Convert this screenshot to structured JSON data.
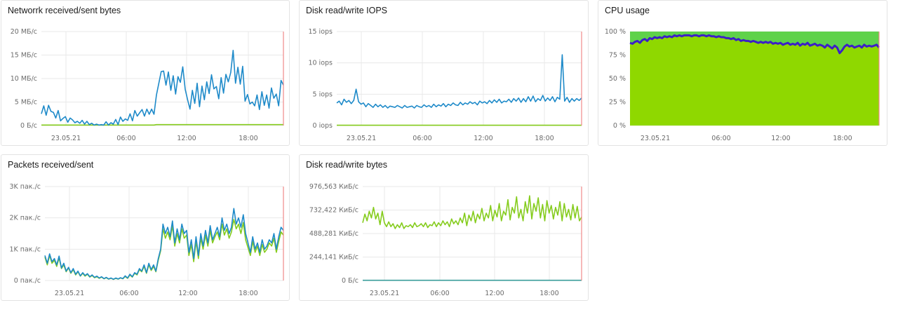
{
  "colors": {
    "blue": "#1e8ac9",
    "green": "#85cc1d",
    "teal": "#3a9c9b",
    "cpu_fill": "#8fd800",
    "cpu_line": "#3c1fc7",
    "grid": "#e8e8e8",
    "now_line": "#f08a8a"
  },
  "chart_data": [
    {
      "id": "network",
      "type": "line",
      "title": "Networrk received/sent bytes",
      "y_ticks": [
        "20 МБ/с",
        "15 МБ/с",
        "10 МБ/с",
        "5 МБ/с",
        "0 Б/с"
      ],
      "x_ticks": [
        "23.05.21",
        "06:00",
        "12:00",
        "18:00"
      ],
      "ylim": [
        0,
        20
      ],
      "y_unit": "МБ/с",
      "grid": true,
      "series": [
        {
          "color": "#1e8ac9",
          "values": [
            2.5,
            4.2,
            2.2,
            4.3,
            3.0,
            2.8,
            1.6,
            3.2,
            1.0,
            1.5,
            1.9,
            0.7,
            1.6,
            1.2,
            0.6,
            0.9,
            0.5,
            1.1,
            0.3,
            0.9,
            0.2,
            0.5,
            0.1,
            0.3,
            0.1,
            0.2,
            0.1,
            0.8,
            0.1,
            0.6,
            0.3,
            1.3,
            0.2,
            1.8,
            0.9,
            1.4,
            1.1,
            2.5,
            1.0,
            3.2,
            2.0,
            2.7,
            3.4,
            2.0,
            3.5,
            2.4,
            3.5,
            2.4,
            6.5,
            9.0,
            11.5,
            11.6,
            8.6,
            11.4,
            7.5,
            10.6,
            6.7,
            10.4,
            9.2,
            12.5,
            7.7,
            5.5,
            3.5,
            7.5,
            4.7,
            9.0,
            4.0,
            8.4,
            5.5,
            9.3,
            6.8,
            10.8,
            7.8,
            8.3,
            5.7,
            10.2,
            6.9,
            10.9,
            9.3,
            11.3,
            16.0,
            9.0,
            12.4,
            8.8,
            12.6,
            5.2,
            6.6,
            4.6,
            5.0,
            4.2,
            6.5,
            3.4,
            7.2,
            4.3,
            6.5,
            3.7,
            8.0,
            5.8,
            6.7,
            4.2,
            9.6,
            8.6
          ]
        },
        {
          "color": "#85cc1d",
          "values": [
            0.1,
            0.1,
            0.1,
            0.1,
            0.1,
            0.1,
            0.1,
            0.1,
            0.1,
            0.1,
            0.1,
            0.1,
            0.1,
            0.1,
            0.1,
            0.1,
            0.1,
            0.1,
            0.1,
            0.1,
            0.1,
            0.1,
            0.1,
            0.1,
            0.1,
            0.1,
            0.1,
            0.1,
            0.1,
            0.1,
            0.1,
            0.1,
            0.1,
            0.1,
            0.1,
            0.1,
            0.1,
            0.1,
            0.1,
            0.1,
            0.1,
            0.1,
            0.1,
            0.1,
            0.1,
            0.1,
            0.1,
            0.1,
            0.2,
            0.2,
            0.2,
            0.2,
            0.2,
            0.2,
            0.2,
            0.2,
            0.2,
            0.2,
            0.2,
            0.2,
            0.2,
            0.2,
            0.2,
            0.2,
            0.2,
            0.2,
            0.2,
            0.2,
            0.2,
            0.2,
            0.2,
            0.2,
            0.2,
            0.2,
            0.2,
            0.2,
            0.2,
            0.2,
            0.2,
            0.2,
            0.2,
            0.2,
            0.2,
            0.2,
            0.2,
            0.2,
            0.2,
            0.2,
            0.2,
            0.2,
            0.2,
            0.2,
            0.2,
            0.2,
            0.2,
            0.2,
            0.2,
            0.2,
            0.2,
            0.2,
            0.2,
            0.2
          ]
        }
      ]
    },
    {
      "id": "iops",
      "type": "line",
      "title": "Disk read/write IOPS",
      "y_ticks": [
        "15 iops",
        "10 iops",
        "5 iops",
        "0 iops"
      ],
      "x_ticks": [
        "23.05.21",
        "06:00",
        "12:00",
        "18:00"
      ],
      "ylim": [
        0,
        15
      ],
      "y_unit": "iops",
      "grid": true,
      "series": [
        {
          "color": "#1e8ac9",
          "values": [
            3.6,
            3.9,
            3.3,
            4.2,
            3.7,
            4.0,
            3.5,
            4.0,
            5.8,
            3.8,
            3.4,
            3.6,
            3.0,
            3.5,
            3.2,
            2.9,
            3.4,
            3.0,
            3.3,
            2.9,
            3.2,
            2.8,
            3.1,
            3.0,
            2.9,
            3.2,
            3.0,
            2.8,
            3.2,
            2.9,
            3.0,
            3.1,
            2.8,
            3.2,
            3.0,
            2.9,
            3.3,
            3.0,
            3.2,
            2.9,
            3.4,
            3.0,
            3.3,
            3.1,
            3.5,
            3.0,
            3.4,
            3.2,
            3.6,
            3.3,
            3.2,
            3.7,
            3.3,
            3.6,
            3.4,
            3.8,
            3.5,
            3.7,
            3.3,
            3.9,
            3.6,
            3.8,
            3.5,
            4.0,
            3.6,
            4.1,
            3.7,
            4.2,
            3.6,
            3.9,
            3.8,
            4.2,
            3.7,
            4.3,
            3.9,
            4.4,
            3.7,
            4.3,
            3.8,
            4.6,
            3.9,
            4.7,
            3.8,
            4.3,
            4.0,
            4.8,
            3.9,
            4.4,
            4.0,
            4.6,
            3.8,
            4.5,
            4.2,
            11.3,
            3.9,
            4.5,
            3.7,
            4.3,
            3.9,
            4.3,
            4.0,
            4.4
          ]
        },
        {
          "color": "#85cc1d",
          "values": [
            0.05,
            0.05,
            0.05,
            0.05,
            0.05,
            0.05,
            0.05,
            0.05,
            0.05,
            0.05,
            0.05,
            0.05,
            0.05,
            0.05,
            0.05,
            0.05,
            0.05,
            0.05,
            0.05,
            0.05,
            0.05,
            0.05,
            0.05,
            0.05,
            0.05,
            0.05,
            0.05,
            0.05,
            0.05,
            0.05,
            0.05,
            0.05,
            0.05,
            0.05,
            0.05,
            0.05,
            0.05,
            0.05,
            0.05,
            0.05,
            0.05,
            0.05,
            0.05,
            0.05,
            0.05,
            0.05,
            0.05,
            0.05,
            0.05,
            0.05,
            0.05,
            0.05,
            0.05,
            0.05,
            0.05,
            0.05,
            0.05,
            0.05,
            0.05,
            0.05,
            0.05,
            0.05,
            0.05,
            0.05,
            0.05,
            0.05,
            0.05,
            0.05,
            0.05,
            0.05,
            0.05,
            0.05,
            0.05,
            0.05,
            0.05,
            0.05,
            0.05,
            0.05,
            0.05,
            0.05,
            0.05,
            0.05,
            0.05,
            0.05,
            0.05,
            0.05,
            0.05,
            0.05,
            0.05,
            0.05,
            0.05,
            0.05,
            0.05,
            0.05,
            0.05,
            0.05,
            0.05,
            0.05,
            0.05,
            0.05,
            0.05,
            0.05
          ]
        }
      ]
    },
    {
      "id": "cpu",
      "type": "area",
      "title": "CPU usage",
      "y_ticks": [
        "100 %",
        "75 %",
        "50 %",
        "25 %",
        "0 %"
      ],
      "x_ticks": [
        "23.05.21",
        "06:00",
        "12:00",
        "18:00"
      ],
      "ylim": [
        0,
        100
      ],
      "y_unit": "%",
      "grid": true,
      "series": [
        {
          "color": "#3c1fc7",
          "values": [
            88,
            87,
            89,
            90,
            88,
            91,
            92,
            90,
            93,
            92,
            94,
            93,
            94,
            93,
            95,
            94,
            95,
            94,
            96,
            95,
            96,
            95,
            96,
            96,
            96,
            95,
            96,
            96,
            95,
            96,
            96,
            95,
            96,
            95,
            95,
            94,
            95,
            94,
            94,
            93,
            93,
            92,
            93,
            91,
            92,
            90,
            91,
            90,
            90,
            89,
            90,
            89,
            88,
            89,
            88,
            89,
            88,
            89,
            87,
            88,
            87,
            88,
            86,
            87,
            88,
            86,
            87,
            86,
            88,
            85,
            87,
            86,
            88,
            85,
            86,
            87,
            85,
            86,
            85,
            83,
            86,
            84,
            82,
            85,
            83,
            77,
            80,
            84,
            86,
            84,
            85,
            83,
            84,
            85,
            83,
            86,
            84,
            85,
            84,
            85,
            86,
            83
          ]
        }
      ]
    },
    {
      "id": "packets",
      "type": "line",
      "title": "Packets received/sent",
      "y_ticks": [
        "3K пак./с",
        "2K пак./с",
        "1K пак./с",
        "0 пак./с"
      ],
      "x_ticks": [
        "23.05.21",
        "06:00",
        "12:00",
        "18:00"
      ],
      "ylim": [
        0,
        3000
      ],
      "y_unit": "пак./с",
      "grid": true,
      "series": [
        {
          "color": "#1e8ac9",
          "values": [
            800,
            550,
            850,
            600,
            700,
            500,
            780,
            400,
            550,
            300,
            420,
            250,
            380,
            200,
            300,
            150,
            250,
            160,
            220,
            120,
            180,
            100,
            140,
            80,
            120,
            60,
            100,
            50,
            80,
            40,
            80,
            50,
            90,
            60,
            150,
            80,
            200,
            120,
            250,
            200,
            380,
            300,
            500,
            250,
            550,
            350,
            500,
            300,
            700,
            1000,
            1800,
            1500,
            1700,
            1400,
            1900,
            1200,
            1650,
            1300,
            1800,
            1500,
            1600,
            900,
            1300,
            700,
            1400,
            800,
            1500,
            1100,
            1600,
            1200,
            1750,
            1300,
            1500,
            1700,
            1400,
            2000,
            1600,
            1800,
            1500,
            1700,
            2300,
            1800,
            2000,
            1700,
            2100,
            1500,
            1200,
            900,
            1400,
            1000,
            1200,
            900,
            1300,
            1000,
            1100,
            1300,
            1200,
            1500,
            1000,
            1400,
            1700,
            1600
          ]
        },
        {
          "color": "#85cc1d",
          "values": [
            750,
            500,
            800,
            550,
            650,
            450,
            720,
            380,
            500,
            280,
            400,
            230,
            350,
            180,
            280,
            140,
            230,
            140,
            200,
            110,
            160,
            90,
            120,
            70,
            110,
            55,
            90,
            45,
            75,
            35,
            70,
            45,
            80,
            55,
            130,
            70,
            180,
            110,
            230,
            180,
            350,
            280,
            450,
            230,
            500,
            320,
            450,
            280,
            650,
            950,
            1650,
            1350,
            1550,
            1300,
            1750,
            1100,
            1500,
            1200,
            1650,
            1350,
            1450,
            800,
            1150,
            600,
            1250,
            700,
            1350,
            1000,
            1450,
            1100,
            1600,
            1200,
            1400,
            1550,
            1300,
            1800,
            1450,
            1650,
            1350,
            1550,
            1950,
            1650,
            1800,
            1500,
            1850,
            1300,
            1050,
            800,
            1250,
            900,
            1100,
            800,
            1150,
            900,
            1000,
            1200,
            1100,
            1350,
            900,
            1250,
            1550,
            1450
          ]
        }
      ]
    },
    {
      "id": "disk_bytes",
      "type": "line",
      "title": "Disk read/write bytes",
      "y_ticks": [
        "976,563 КиБ/с",
        "732,422 КиБ/с",
        "488,281 КиБ/с",
        "244,141 КиБ/с",
        "0 Б/с"
      ],
      "x_ticks": [
        "23.05.21",
        "06:00",
        "12:00",
        "18:00"
      ],
      "ylim": [
        0,
        976563
      ],
      "y_unit": "КиБ/с",
      "grid": true,
      "series": [
        {
          "color": "#85cc1d",
          "values": [
            600000,
            690000,
            620000,
            720000,
            650000,
            760000,
            640000,
            700000,
            580000,
            720000,
            600000,
            560000,
            610000,
            560000,
            590000,
            540000,
            580000,
            550000,
            600000,
            540000,
            570000,
            560000,
            580000,
            550000,
            600000,
            560000,
            570000,
            590000,
            560000,
            600000,
            550000,
            580000,
            570000,
            610000,
            560000,
            600000,
            570000,
            620000,
            580000,
            610000,
            560000,
            640000,
            590000,
            620000,
            580000,
            650000,
            600000,
            700000,
            570000,
            680000,
            620000,
            720000,
            600000,
            690000,
            640000,
            750000,
            620000,
            700000,
            650000,
            780000,
            620000,
            730000,
            660000,
            800000,
            620000,
            720000,
            680000,
            840000,
            630000,
            760000,
            700000,
            870000,
            650000,
            740000,
            620000,
            820000,
            700000,
            880000,
            640000,
            800000,
            720000,
            860000,
            650000,
            790000,
            620000,
            830000,
            700000,
            780000,
            640000,
            760000,
            680000,
            820000,
            620000,
            800000,
            660000,
            740000,
            630000,
            790000,
            650000,
            770000,
            620000,
            660000
          ]
        },
        {
          "color": "#3a9c9b",
          "values": [
            2000,
            2000,
            2000,
            2000,
            2000,
            2000,
            2000,
            2000,
            2000,
            2000,
            2000,
            2000,
            2000,
            2000,
            2000,
            2000,
            2000,
            2000,
            2000,
            2000,
            2000,
            2000,
            2000,
            2000,
            2000,
            2000,
            2000,
            2000,
            2000,
            2000,
            2000,
            2000,
            2000,
            2000,
            2000,
            2000,
            2000,
            2000,
            2000,
            2000,
            2000,
            2000,
            2000,
            2000,
            2000,
            2000,
            2000,
            2000,
            2000,
            2000,
            2000,
            2000,
            2000,
            2000,
            2000,
            2000,
            2000,
            2000,
            2000,
            2000,
            2000,
            2000,
            2000,
            2000,
            2000,
            2000,
            2000,
            2000,
            2000,
            2000,
            2000,
            2000,
            2000,
            2000,
            2000,
            2000,
            2000,
            2000,
            2000,
            2000,
            2000,
            2000,
            2000,
            2000,
            2000,
            2000,
            2000,
            2000,
            2000,
            2000,
            2000,
            2000,
            2000,
            2000,
            2000,
            2000,
            2000,
            2000,
            2000,
            2000,
            2000,
            2000
          ]
        }
      ]
    }
  ]
}
